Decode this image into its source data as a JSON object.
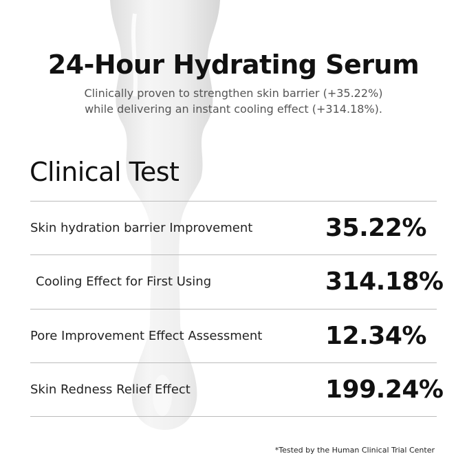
{
  "header": {
    "title": "24-Hour Hydrating Serum",
    "subtitle_line1": "Clinically proven to strengthen skin barrier (+35.22%)",
    "subtitle_line2": "while delivering an instant cooling effect (+314.18%)."
  },
  "clinical_test": {
    "heading": "Clinical Test",
    "rows": [
      {
        "label": "Skin hydration barrier Improvement",
        "value": "35.22%"
      },
      {
        "label": "Cooling Effect for First Using",
        "value": "314.18%"
      },
      {
        "label": "Pore Improvement Effect Assessment",
        "value": "12.34%"
      },
      {
        "label": "Skin Redness Relief Effect",
        "value": "199.24%"
      }
    ]
  },
  "footnote": "*Tested by the Human Clinical Trial Center",
  "background": {
    "image": "serum-drip",
    "color": "#ffffff"
  }
}
